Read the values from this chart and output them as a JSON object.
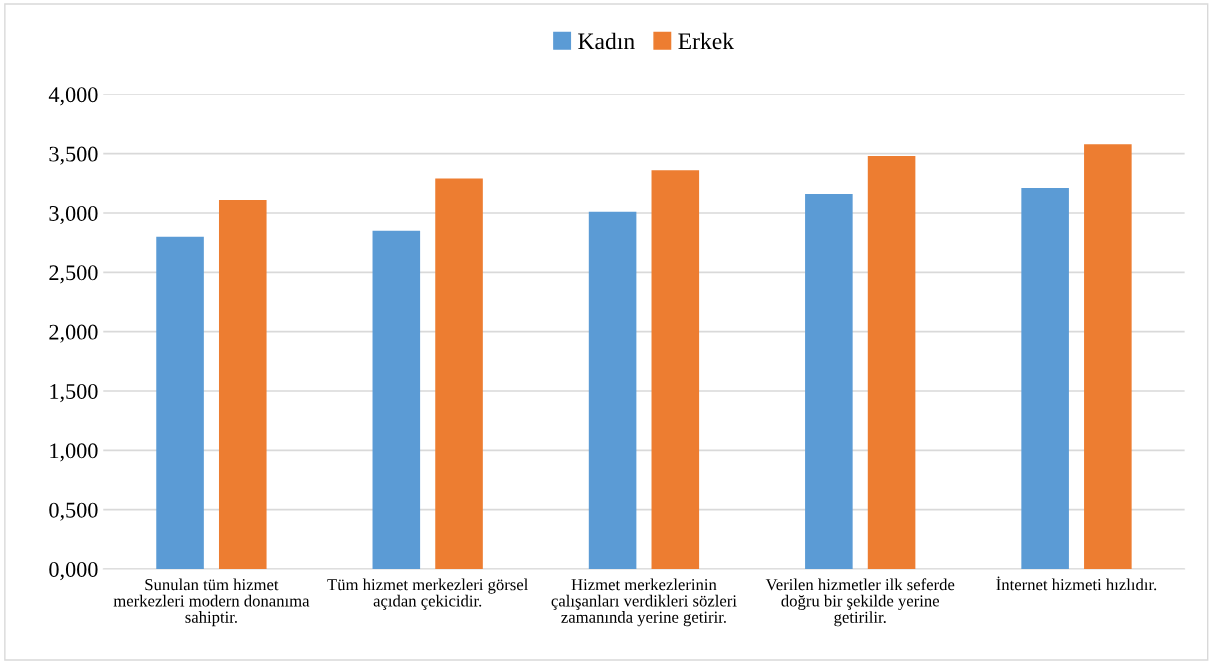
{
  "chart_data": {
    "type": "bar",
    "categories": [
      "Sunulan tüm hizmet merkezleri modern donanıma sahiptir.",
      "Tüm hizmet merkezleri görsel açıdan çekicidir.",
      "Hizmet merkezlerinin çalışanları verdikleri sözleri zamanında yerine getirir.",
      "Verilen hizmetler ilk seferde doğru bir şekilde yerine getirilir.",
      "İnternet hizmeti hızlıdır."
    ],
    "series": [
      {
        "name": "Kadın",
        "color": "#5b9bd5",
        "values": [
          2.8,
          2.85,
          3.01,
          3.16,
          3.21
        ]
      },
      {
        "name": "Erkek",
        "color": "#ed7d31",
        "values": [
          3.11,
          3.29,
          3.36,
          3.48,
          3.58
        ]
      }
    ],
    "ylim": [
      0,
      4
    ],
    "yticks": [
      {
        "value": 0,
        "label": "0,000"
      },
      {
        "value": 0.5,
        "label": "0,500"
      },
      {
        "value": 1,
        "label": "1,000"
      },
      {
        "value": 1.5,
        "label": "1,500"
      },
      {
        "value": 2,
        "label": "2,000"
      },
      {
        "value": 2.5,
        "label": "2,500"
      },
      {
        "value": 3,
        "label": "3,000"
      },
      {
        "value": 3.5,
        "label": "3,500"
      },
      {
        "value": 4,
        "label": "4,000"
      }
    ],
    "grid": "y",
    "legend": "top"
  }
}
